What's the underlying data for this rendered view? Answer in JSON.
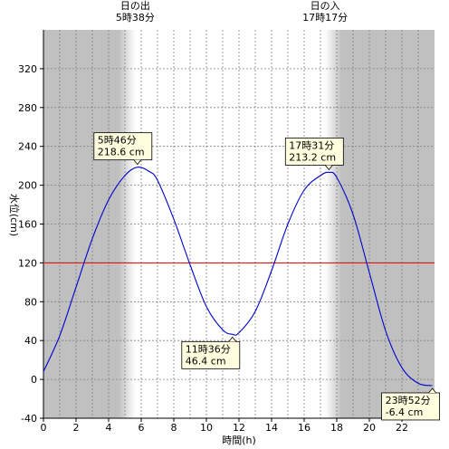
{
  "chart_data": {
    "type": "line",
    "title": "",
    "xlabel": "時間(h)",
    "ylabel": "水位(cm)",
    "xlim": [
      0,
      24
    ],
    "ylim": [
      -40,
      360
    ],
    "x_ticks": [
      "0",
      "2",
      "4",
      "6",
      "8",
      "10",
      "12",
      "14",
      "16",
      "18",
      "20",
      "22"
    ],
    "y_ticks": [
      "-40",
      "0",
      "40",
      "80",
      "120",
      "160",
      "200",
      "240",
      "280",
      "320"
    ],
    "grid": true,
    "reference_line": {
      "value": 120,
      "color": "#e00000"
    },
    "daylight": {
      "sunrise_hour": 5.633,
      "sunset_hour": 17.283,
      "sunrise_label": [
        "日の出",
        "5時38分"
      ],
      "sunset_label": [
        "日の入",
        "17時17分"
      ]
    },
    "series": [
      {
        "color": "#0000cc",
        "x": [
          0,
          1,
          2,
          3,
          4,
          5,
          5.767,
          6.5,
          7,
          8,
          9,
          10,
          11,
          11.6,
          12,
          13,
          14,
          15,
          16,
          17,
          17.517,
          18,
          19,
          20,
          21,
          22,
          23,
          23.867
        ],
        "values": [
          8,
          45,
          95,
          145,
          185,
          210,
          218.6,
          214,
          205,
          165,
          118,
          75,
          51,
          46.4,
          48,
          70,
          112,
          160,
          195,
          210,
          213.2,
          208,
          170,
          110,
          50,
          12,
          -4,
          -6.4
        ]
      }
    ],
    "annotations": [
      {
        "x": 5.767,
        "y": 218.6,
        "lines": [
          "5時46分",
          "218.6 cm"
        ],
        "placement": "above"
      },
      {
        "x": 17.517,
        "y": 213.2,
        "lines": [
          "17時31分",
          "213.2 cm"
        ],
        "placement": "above"
      },
      {
        "x": 11.6,
        "y": 46.4,
        "lines": [
          "11時36分",
          "46.4 cm"
        ],
        "placement": "below"
      },
      {
        "x": 23.867,
        "y": -6.4,
        "lines": [
          "23時52分",
          "-6.4 cm"
        ],
        "placement": "below"
      }
    ],
    "colors": {
      "night": "#c0c0c0",
      "day": "#ffffff",
      "grid": "#808080",
      "axis": "#000000",
      "annotation_bg": "#ffffe0"
    }
  }
}
